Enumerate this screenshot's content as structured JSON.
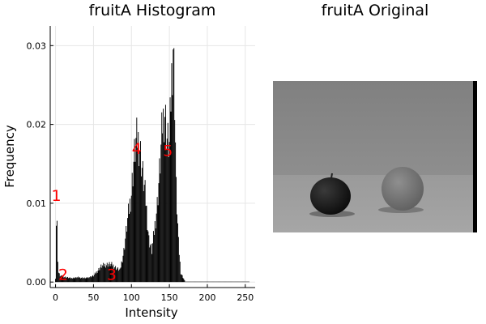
{
  "histogram_title": "fruitA Histogram",
  "image_title": "fruitA Original",
  "chart_data": {
    "type": "bar",
    "title": "fruitA Histogram",
    "xlabel": "Intensity",
    "ylabel": "Frequency",
    "xlim": [
      -7,
      263
    ],
    "ylim": [
      -0.0007,
      0.0325
    ],
    "xticks": [
      0,
      50,
      100,
      150,
      200,
      250
    ],
    "xtick_labels": [
      "0",
      "50",
      "100",
      "150",
      "200",
      "250"
    ],
    "yticks": [
      0.0,
      0.01,
      0.02,
      0.03
    ],
    "ytick_labels": [
      "0.00",
      "0.01",
      "0.02",
      "0.03"
    ],
    "grid": true,
    "legend": "none",
    "bar_color": "#000000",
    "profile_points": [
      [
        0,
        0.0005
      ],
      [
        1,
        0.0075
      ],
      [
        2,
        0.0072
      ],
      [
        3,
        0.003
      ],
      [
        4,
        0.0012
      ],
      [
        6,
        0.0008
      ],
      [
        10,
        0.0007
      ],
      [
        20,
        0.0005
      ],
      [
        30,
        0.0006
      ],
      [
        40,
        0.0005
      ],
      [
        50,
        0.0008
      ],
      [
        55,
        0.0014
      ],
      [
        60,
        0.002
      ],
      [
        65,
        0.0022
      ],
      [
        70,
        0.0023
      ],
      [
        75,
        0.0022
      ],
      [
        80,
        0.0018
      ],
      [
        85,
        0.0015
      ],
      [
        90,
        0.004
      ],
      [
        95,
        0.008
      ],
      [
        100,
        0.0115
      ],
      [
        103,
        0.0155
      ],
      [
        106,
        0.018
      ],
      [
        108,
        0.0185
      ],
      [
        111,
        0.0175
      ],
      [
        115,
        0.0138
      ],
      [
        119,
        0.0105
      ],
      [
        123,
        0.0055
      ],
      [
        127,
        0.004
      ],
      [
        130,
        0.0065
      ],
      [
        134,
        0.01
      ],
      [
        138,
        0.0155
      ],
      [
        141,
        0.0205
      ],
      [
        144,
        0.022
      ],
      [
        147,
        0.0185
      ],
      [
        150,
        0.0175
      ],
      [
        153,
        0.0265
      ],
      [
        155,
        0.031
      ],
      [
        157,
        0.024
      ],
      [
        159,
        0.012
      ],
      [
        162,
        0.005
      ],
      [
        165,
        0.0012
      ],
      [
        170,
        0.0002
      ],
      [
        255,
        0.0
      ]
    ],
    "annotations": [
      {
        "label": "1",
        "x": 1,
        "y": 0.011
      },
      {
        "label": "2",
        "x": 10,
        "y": 0.001
      },
      {
        "label": "3",
        "x": 74,
        "y": 0.001
      },
      {
        "label": "4",
        "x": 107,
        "y": 0.017
      },
      {
        "label": "5",
        "x": 148,
        "y": 0.0167
      }
    ]
  },
  "image_panel": {
    "background_color": "#8a8a8a",
    "table_color": "#9c9c9c",
    "apple_color": "#151515",
    "orange_color": "#7a7a7a"
  }
}
